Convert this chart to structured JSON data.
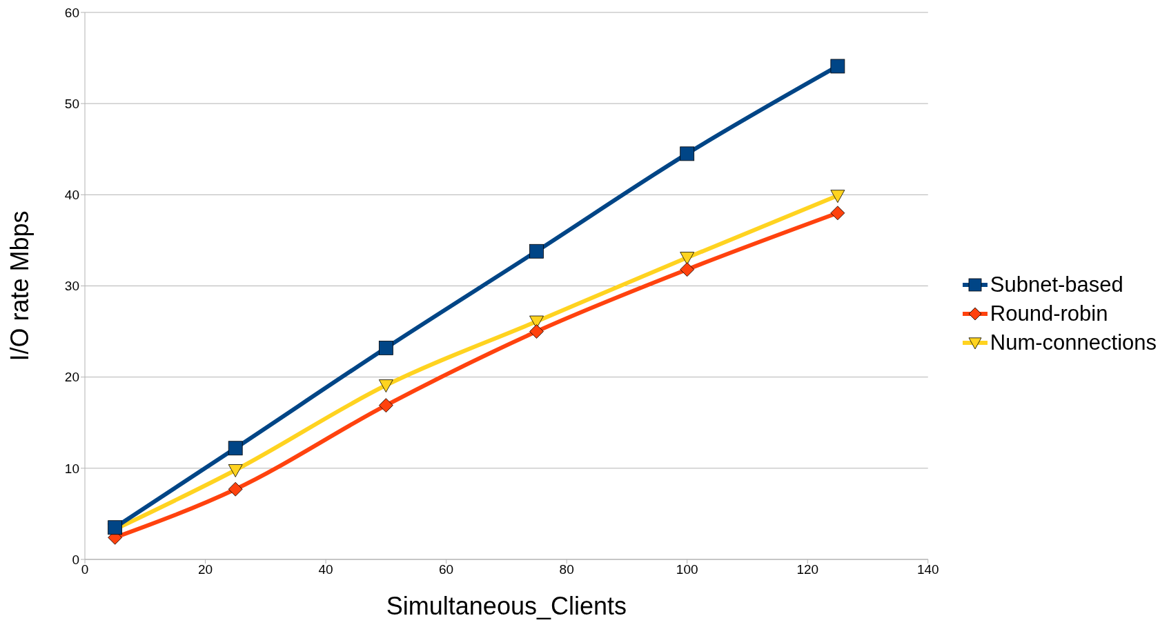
{
  "chart_data": {
    "type": "line",
    "xlabel": "Simultaneous_Clients",
    "ylabel": "I/O rate Mbps",
    "x": [
      5,
      25,
      50,
      75,
      100,
      125
    ],
    "xlim": [
      0,
      140
    ],
    "xticks": [
      0,
      20,
      40,
      60,
      80,
      100,
      120,
      140
    ],
    "ylim": [
      0,
      60
    ],
    "yticks": [
      0,
      10,
      20,
      30,
      40,
      50,
      60
    ],
    "grid": "y",
    "legend": "right",
    "series": [
      {
        "name": "Subnet-based",
        "color": "#004586",
        "marker": "square",
        "values": [
          3.5,
          12.2,
          23.2,
          33.8,
          44.5,
          54.1
        ]
      },
      {
        "name": "Round-robin",
        "color": "#ff420e",
        "marker": "diamond",
        "values": [
          2.4,
          7.7,
          16.9,
          25.0,
          31.8,
          38.0
        ]
      },
      {
        "name": "Num-connections",
        "color": "#ffd320",
        "marker": "triangle-down",
        "values": [
          3.3,
          9.8,
          19.1,
          26.1,
          33.1,
          39.9
        ]
      }
    ]
  }
}
